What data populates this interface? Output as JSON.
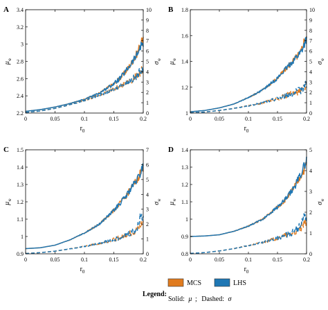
{
  "chart_data": [
    {
      "panel": "A",
      "type": "line",
      "xlabel": "r",
      "xlabel_sub": "0",
      "ylabel_left": "μ",
      "ylabel_left_sub": "w̄",
      "ylabel_right": "σ",
      "ylabel_right_sub": "w̄",
      "xlim": [
        0,
        0.2
      ],
      "ylim_left": [
        2.2,
        3.4
      ],
      "ylim_right": [
        0,
        10
      ],
      "xticks": [
        "0",
        "0.05",
        "0.1",
        "0.15",
        "0.2"
      ],
      "yticks_left": [
        "2.2",
        "2.4",
        "2.6",
        "2.8",
        "3",
        "3.2",
        "3.4"
      ],
      "yticks_right": [
        "0",
        "1",
        "2",
        "3",
        "4",
        "5",
        "6",
        "7",
        "8",
        "9",
        "10"
      ],
      "series": [
        {
          "name": "MCS",
          "stat": "mean",
          "axis": "left",
          "x": [
            0,
            0.025,
            0.05,
            0.075,
            0.1,
            0.125,
            0.15,
            0.16,
            0.17,
            0.18,
            0.19,
            0.195,
            0.2
          ],
          "y": [
            2.22,
            2.24,
            2.27,
            2.31,
            2.36,
            2.43,
            2.54,
            2.6,
            2.68,
            2.78,
            2.9,
            3.0,
            3.05
          ]
        },
        {
          "name": "LHS",
          "stat": "mean",
          "axis": "left",
          "x": [
            0,
            0.025,
            0.05,
            0.075,
            0.1,
            0.125,
            0.15,
            0.16,
            0.17,
            0.18,
            0.19,
            0.195,
            0.2
          ],
          "y": [
            2.22,
            2.24,
            2.27,
            2.31,
            2.36,
            2.43,
            2.54,
            2.6,
            2.68,
            2.78,
            2.88,
            2.97,
            3.02
          ]
        },
        {
          "name": "MCS",
          "stat": "std",
          "axis": "right",
          "x": [
            0,
            0.025,
            0.05,
            0.075,
            0.1,
            0.125,
            0.15,
            0.16,
            0.17,
            0.18,
            0.19,
            0.195,
            0.2
          ],
          "y": [
            0.05,
            0.2,
            0.45,
            0.8,
            1.2,
            1.7,
            2.3,
            2.6,
            2.9,
            3.2,
            3.6,
            4.0,
            4.3
          ]
        },
        {
          "name": "LHS",
          "stat": "std",
          "axis": "right",
          "x": [
            0,
            0.025,
            0.05,
            0.075,
            0.1,
            0.125,
            0.15,
            0.16,
            0.17,
            0.18,
            0.19,
            0.195,
            0.2
          ],
          "y": [
            0.05,
            0.2,
            0.45,
            0.8,
            1.2,
            1.7,
            2.3,
            2.6,
            2.9,
            3.2,
            3.6,
            4.1,
            4.4
          ]
        }
      ]
    },
    {
      "panel": "B",
      "type": "line",
      "xlabel": "r",
      "xlabel_sub": "0",
      "ylabel_left": "μ",
      "ylabel_left_sub": "w̄",
      "ylabel_right": "σ",
      "ylabel_right_sub": "w̄",
      "xlim": [
        0,
        0.2
      ],
      "ylim_left": [
        1.0,
        1.8
      ],
      "ylim_right": [
        0,
        10
      ],
      "xticks": [
        "0",
        "0.05",
        "0.1",
        "0.15",
        "0.2"
      ],
      "yticks_left": [
        "1",
        "1.2",
        "1.4",
        "1.6",
        "1.8"
      ],
      "yticks_right": [
        "0",
        "1",
        "2",
        "3",
        "4",
        "5",
        "6",
        "7",
        "8",
        "9",
        "10"
      ],
      "series": [
        {
          "name": "MCS",
          "stat": "mean",
          "axis": "left",
          "x": [
            0,
            0.025,
            0.05,
            0.075,
            0.1,
            0.125,
            0.15,
            0.16,
            0.17,
            0.18,
            0.19,
            0.195,
            0.2
          ],
          "y": [
            1.01,
            1.02,
            1.04,
            1.07,
            1.12,
            1.18,
            1.27,
            1.32,
            1.37,
            1.42,
            1.47,
            1.55,
            1.6
          ]
        },
        {
          "name": "LHS",
          "stat": "mean",
          "axis": "left",
          "x": [
            0,
            0.025,
            0.05,
            0.075,
            0.1,
            0.125,
            0.15,
            0.16,
            0.17,
            0.18,
            0.19,
            0.195,
            0.2
          ],
          "y": [
            1.01,
            1.02,
            1.04,
            1.07,
            1.12,
            1.18,
            1.27,
            1.32,
            1.37,
            1.42,
            1.47,
            1.52,
            1.58
          ]
        },
        {
          "name": "MCS",
          "stat": "std",
          "axis": "right",
          "x": [
            0,
            0.025,
            0.05,
            0.075,
            0.1,
            0.125,
            0.15,
            0.16,
            0.17,
            0.18,
            0.19,
            0.195,
            0.2
          ],
          "y": [
            0.02,
            0.1,
            0.25,
            0.45,
            0.7,
            1.0,
            1.4,
            1.6,
            1.8,
            2.0,
            2.2,
            2.5,
            2.7
          ]
        },
        {
          "name": "LHS",
          "stat": "std",
          "axis": "right",
          "x": [
            0,
            0.025,
            0.05,
            0.075,
            0.1,
            0.125,
            0.15,
            0.16,
            0.17,
            0.18,
            0.19,
            0.195,
            0.2
          ],
          "y": [
            0.02,
            0.1,
            0.25,
            0.45,
            0.7,
            1.0,
            1.4,
            1.6,
            1.8,
            2.0,
            2.2,
            2.6,
            2.8
          ]
        }
      ]
    },
    {
      "panel": "C",
      "type": "line",
      "xlabel": "r",
      "xlabel_sub": "0",
      "ylabel_left": "μ",
      "ylabel_left_sub": "w̄",
      "ylabel_right": "σ",
      "ylabel_right_sub": "w̄",
      "xlim": [
        0,
        0.2
      ],
      "ylim_left": [
        0.9,
        1.5
      ],
      "ylim_right": [
        0,
        7
      ],
      "xticks": [
        "0",
        "0.05",
        "0.1",
        "0.15",
        "0.2"
      ],
      "yticks_left": [
        "0.9",
        "1",
        "1.1",
        "1.2",
        "1.3",
        "1.4",
        "1.5"
      ],
      "yticks_right": [
        "0",
        "1",
        "2",
        "3",
        "4",
        "5",
        "6",
        "7"
      ],
      "series": [
        {
          "name": "MCS",
          "stat": "mean",
          "axis": "left",
          "x": [
            0,
            0.025,
            0.05,
            0.075,
            0.1,
            0.125,
            0.15,
            0.16,
            0.17,
            0.18,
            0.19,
            0.195,
            0.2
          ],
          "y": [
            0.93,
            0.935,
            0.95,
            0.98,
            1.02,
            1.07,
            1.15,
            1.19,
            1.23,
            1.28,
            1.33,
            1.37,
            1.4
          ]
        },
        {
          "name": "LHS",
          "stat": "mean",
          "axis": "left",
          "x": [
            0,
            0.025,
            0.05,
            0.075,
            0.1,
            0.125,
            0.15,
            0.16,
            0.17,
            0.18,
            0.19,
            0.195,
            0.2
          ],
          "y": [
            0.93,
            0.935,
            0.95,
            0.98,
            1.02,
            1.07,
            1.15,
            1.19,
            1.23,
            1.28,
            1.33,
            1.36,
            1.42
          ]
        },
        {
          "name": "MCS",
          "stat": "std",
          "axis": "right",
          "x": [
            0,
            0.025,
            0.05,
            0.075,
            0.1,
            0.125,
            0.15,
            0.16,
            0.17,
            0.18,
            0.19,
            0.195,
            0.2
          ],
          "y": [
            0.02,
            0.08,
            0.18,
            0.33,
            0.5,
            0.7,
            0.95,
            1.1,
            1.25,
            1.4,
            1.6,
            1.9,
            2.2
          ]
        },
        {
          "name": "LHS",
          "stat": "std",
          "axis": "right",
          "x": [
            0,
            0.025,
            0.05,
            0.075,
            0.1,
            0.125,
            0.15,
            0.16,
            0.17,
            0.18,
            0.19,
            0.195,
            0.2
          ],
          "y": [
            0.02,
            0.08,
            0.18,
            0.33,
            0.5,
            0.7,
            0.95,
            1.1,
            1.25,
            1.45,
            1.7,
            2.6,
            2.4
          ]
        }
      ]
    },
    {
      "panel": "D",
      "type": "line",
      "xlabel": "r",
      "xlabel_sub": "0",
      "ylabel_left": "μ",
      "ylabel_left_sub": "w̄",
      "ylabel_right": "σ",
      "ylabel_right_sub": "w̄",
      "xlim": [
        0,
        0.2
      ],
      "ylim_left": [
        0.8,
        1.4
      ],
      "ylim_right": [
        0,
        5
      ],
      "xticks": [
        "0",
        "0.05",
        "0.1",
        "0.15",
        "0.2"
      ],
      "yticks_left": [
        "0.8",
        "0.9",
        "1",
        "1.1",
        "1.2",
        "1.3",
        "1.4"
      ],
      "yticks_right": [
        "0",
        "1",
        "2",
        "3",
        "4",
        "5"
      ],
      "series": [
        {
          "name": "MCS",
          "stat": "mean",
          "axis": "left",
          "x": [
            0,
            0.025,
            0.05,
            0.075,
            0.1,
            0.125,
            0.15,
            0.16,
            0.17,
            0.18,
            0.19,
            0.195,
            0.2
          ],
          "y": [
            0.9,
            0.903,
            0.91,
            0.93,
            0.96,
            1.0,
            1.07,
            1.1,
            1.14,
            1.19,
            1.25,
            1.28,
            1.32
          ]
        },
        {
          "name": "LHS",
          "stat": "mean",
          "axis": "left",
          "x": [
            0,
            0.025,
            0.05,
            0.075,
            0.1,
            0.125,
            0.15,
            0.16,
            0.17,
            0.18,
            0.19,
            0.195,
            0.2
          ],
          "y": [
            0.9,
            0.903,
            0.91,
            0.93,
            0.96,
            1.0,
            1.07,
            1.1,
            1.14,
            1.19,
            1.26,
            1.3,
            1.34
          ]
        },
        {
          "name": "MCS",
          "stat": "std",
          "axis": "right",
          "x": [
            0,
            0.025,
            0.05,
            0.075,
            0.1,
            0.125,
            0.15,
            0.16,
            0.17,
            0.18,
            0.19,
            0.195,
            0.2
          ],
          "y": [
            0.02,
            0.06,
            0.14,
            0.25,
            0.4,
            0.55,
            0.75,
            0.85,
            0.95,
            1.05,
            1.2,
            1.4,
            1.5
          ]
        },
        {
          "name": "LHS",
          "stat": "std",
          "axis": "right",
          "x": [
            0,
            0.025,
            0.05,
            0.075,
            0.1,
            0.125,
            0.15,
            0.16,
            0.17,
            0.18,
            0.19,
            0.195,
            0.2
          ],
          "y": [
            0.02,
            0.06,
            0.14,
            0.25,
            0.4,
            0.55,
            0.75,
            0.85,
            0.95,
            1.1,
            1.4,
            1.8,
            1.6
          ]
        }
      ]
    }
  ],
  "legend": {
    "title": "Legend:",
    "items": [
      {
        "label": "MCS",
        "color": "#E07B1F"
      },
      {
        "label": "LHS",
        "color": "#1F77B4"
      }
    ],
    "line_note_solid": "Solid:",
    "line_note_mu": "μ",
    "line_note_sep": ";",
    "line_note_dashed": "Dashed:",
    "line_note_sigma": "σ"
  },
  "colors": {
    "MCS": "#E07B1F",
    "LHS": "#1F77B4"
  }
}
